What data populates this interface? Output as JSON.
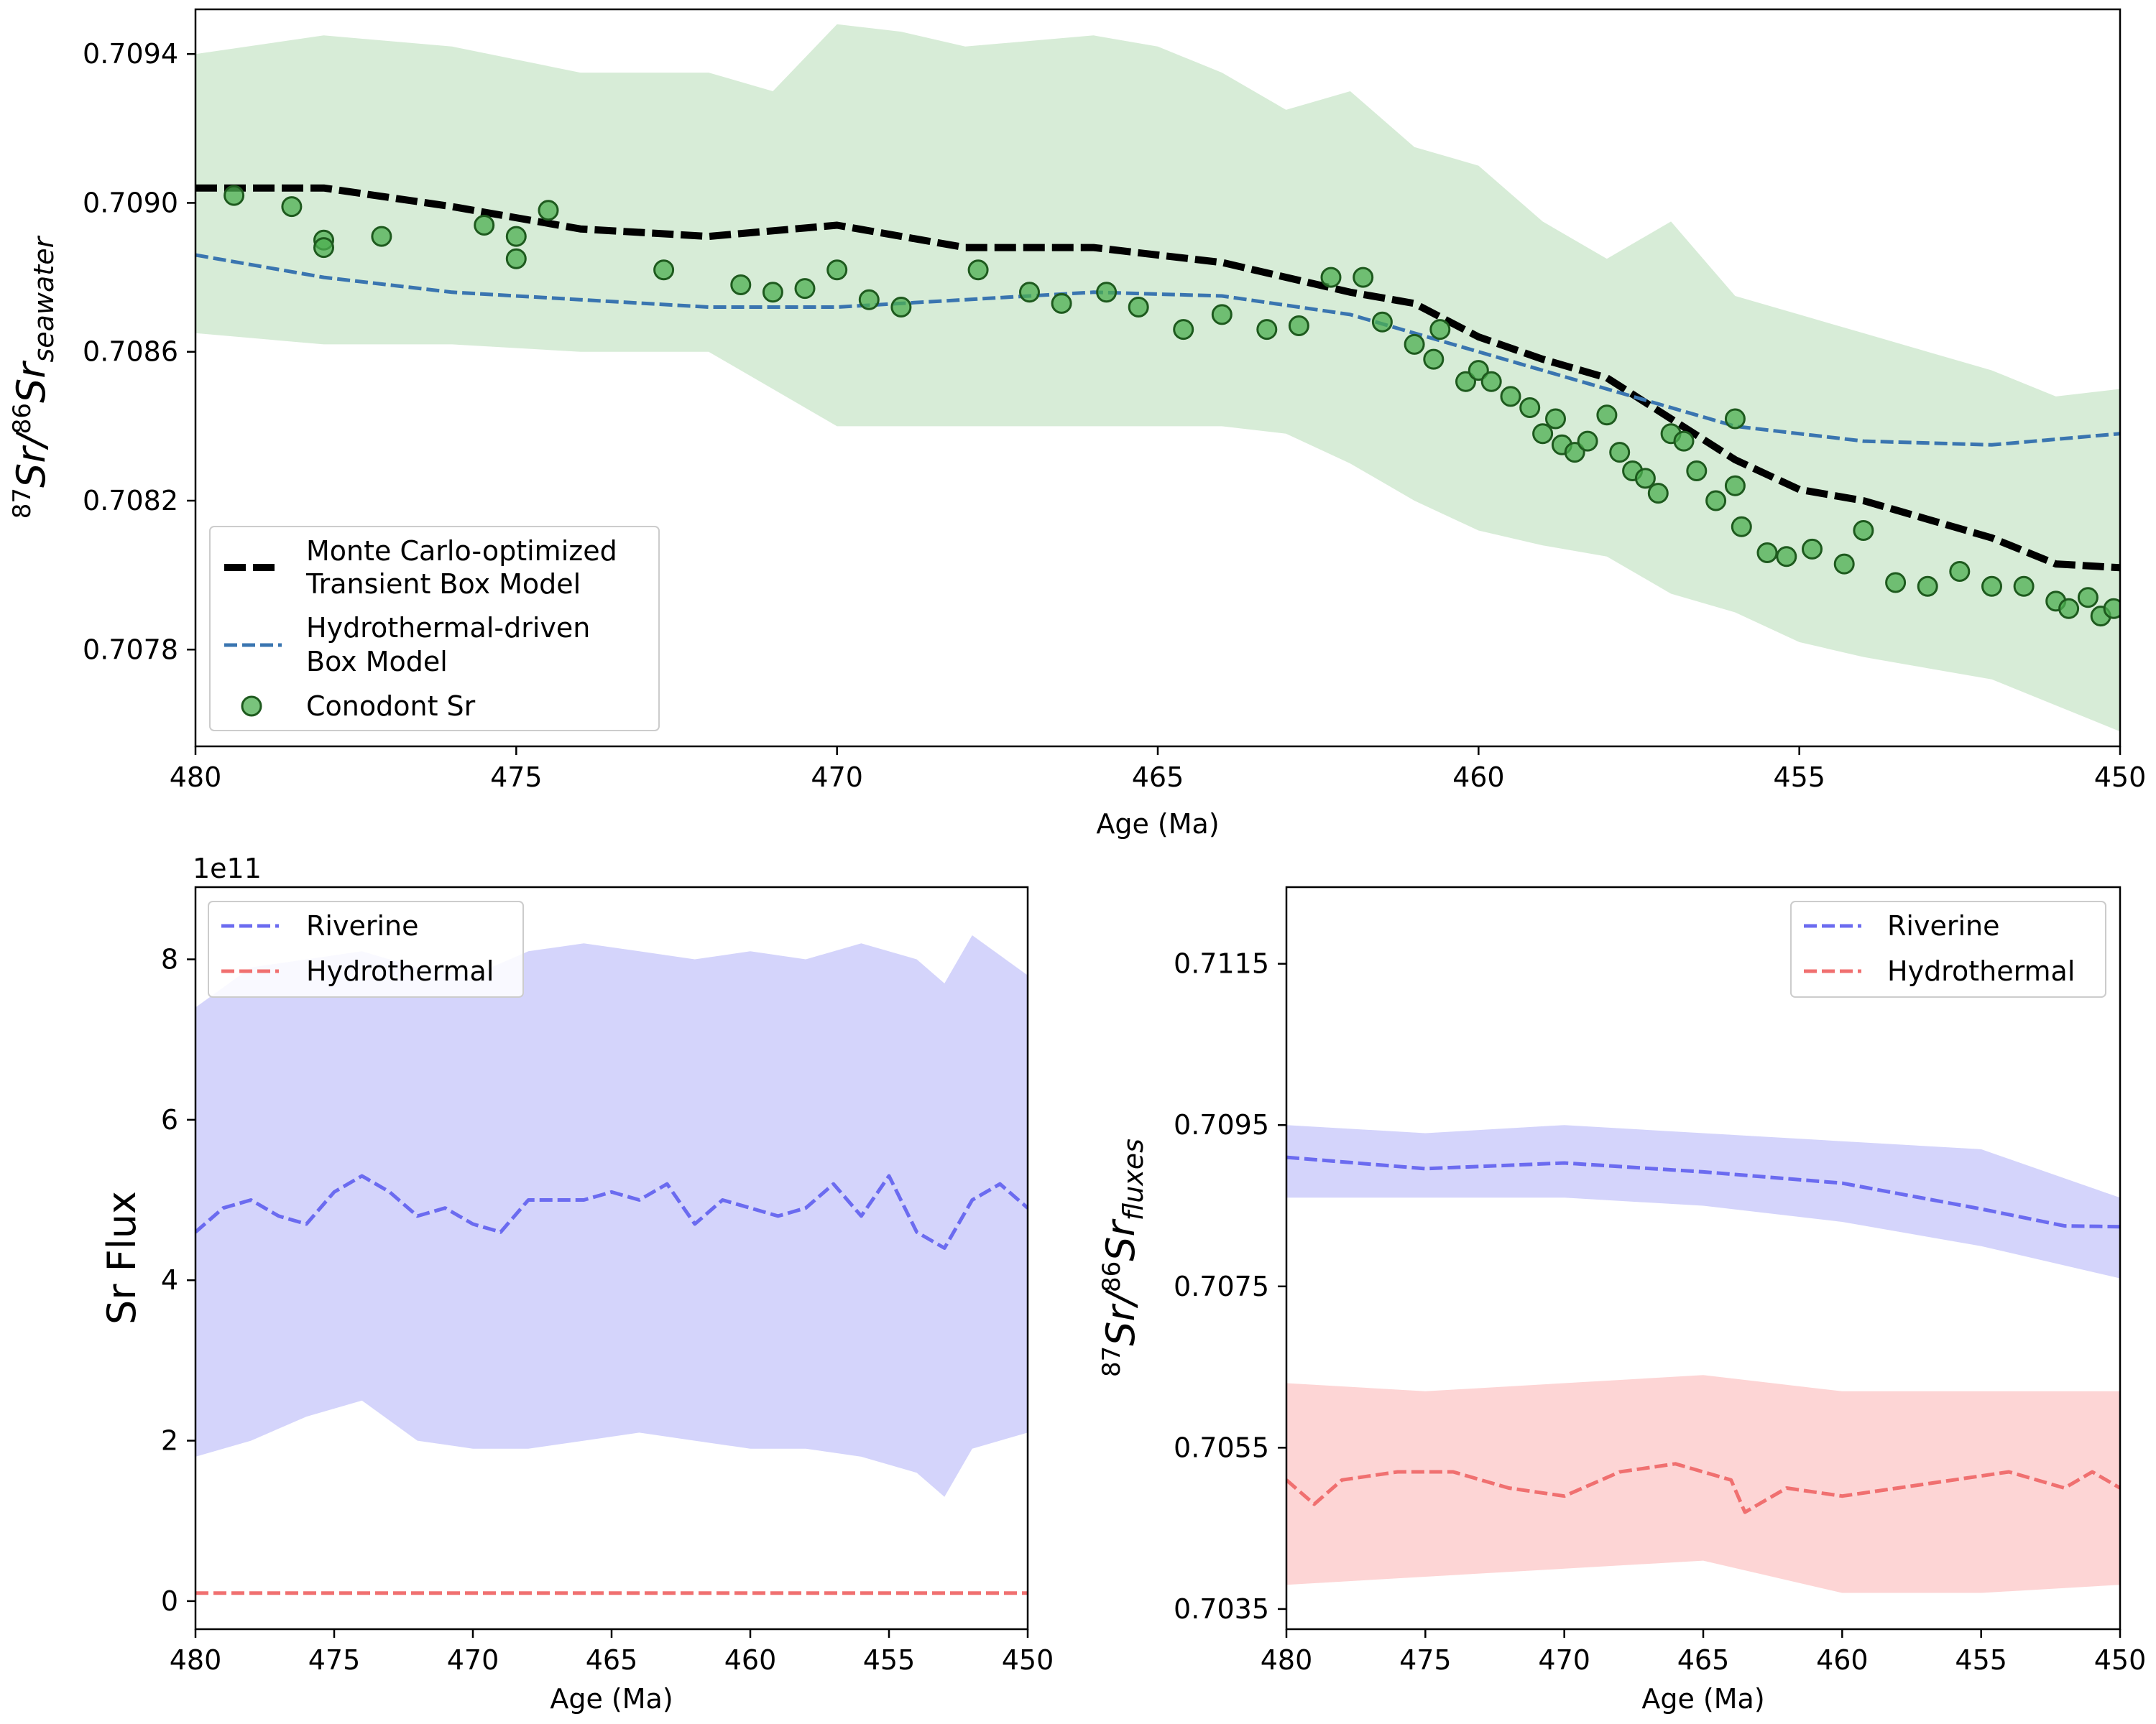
{
  "chart_data": [
    {
      "type": "line",
      "title": "",
      "xlabel": "Age (Ma)",
      "ylabel_sup": "87",
      "ylabel_mid": "Sr/",
      "ylabel_sup2": "86",
      "ylabel_main": "Sr",
      "ylabel_sub": "seawater",
      "xlim": [
        480,
        450
      ],
      "ylim": [
        0.70754,
        0.70952
      ],
      "x_ticks": [
        480,
        475,
        470,
        465,
        460,
        455,
        450
      ],
      "y_ticks": [
        0.7078,
        0.7082,
        0.7086,
        0.709,
        0.7094
      ],
      "legend_position": "lower-left",
      "band": {
        "color": "#d7ecd7",
        "x": [
          480,
          478,
          476,
          474,
          472,
          471,
          470,
          469,
          468,
          466,
          465,
          464,
          463,
          462,
          461,
          460,
          459,
          458,
          457,
          456,
          455,
          454,
          453,
          452,
          451,
          450
        ],
        "upper": [
          0.7094,
          0.70945,
          0.70942,
          0.70935,
          0.70935,
          0.7093,
          0.70948,
          0.70946,
          0.70942,
          0.70945,
          0.70942,
          0.70935,
          0.70925,
          0.7093,
          0.70915,
          0.7091,
          0.70895,
          0.70885,
          0.70895,
          0.70875,
          0.7087,
          0.70865,
          0.7086,
          0.70855,
          0.70848,
          0.7085
        ],
        "lower": [
          0.70865,
          0.70862,
          0.70862,
          0.7086,
          0.7086,
          0.7085,
          0.7084,
          0.7084,
          0.7084,
          0.7084,
          0.7084,
          0.7084,
          0.70838,
          0.7083,
          0.7082,
          0.70812,
          0.70808,
          0.70805,
          0.70795,
          0.7079,
          0.70782,
          0.70778,
          0.70775,
          0.70772,
          0.70765,
          0.70758
        ]
      },
      "series": [
        {
          "name": "Monte Carlo-optimized Transient Box Model",
          "color": "#000000",
          "style": "dashed-thick",
          "x": [
            480,
            478,
            476,
            474,
            472,
            470,
            468,
            466,
            464,
            462,
            461,
            460,
            459,
            458,
            457,
            456,
            455,
            454,
            453,
            452,
            451,
            450
          ],
          "y": [
            0.70904,
            0.70904,
            0.70899,
            0.70893,
            0.70891,
            0.70894,
            0.70888,
            0.70888,
            0.70884,
            0.70876,
            0.70873,
            0.70864,
            0.70858,
            0.70853,
            0.70842,
            0.70831,
            0.70823,
            0.7082,
            0.70815,
            0.7081,
            0.70803,
            0.70802
          ]
        },
        {
          "name": "Hydrothermal-driven Box Model",
          "color": "#3a75b0",
          "style": "dashed",
          "x": [
            480,
            478,
            476,
            474,
            472,
            470,
            468,
            466,
            464,
            462,
            460,
            458,
            456,
            454,
            452,
            450
          ],
          "y": [
            0.70886,
            0.7088,
            0.70876,
            0.70874,
            0.70872,
            0.70872,
            0.70874,
            0.70876,
            0.70875,
            0.7087,
            0.7086,
            0.7085,
            0.7084,
            0.70836,
            0.70835,
            0.70838
          ]
        },
        {
          "name": "Conodont Sr",
          "color": "#4caf50",
          "style": "scatter",
          "x": [
            479.4,
            478.5,
            478.0,
            478.0,
            477.1,
            475.5,
            475.0,
            475.0,
            474.5,
            472.7,
            471.5,
            471.0,
            470.5,
            470.0,
            469.5,
            469.0,
            467.8,
            467.0,
            466.5,
            465.8,
            465.3,
            464.6,
            464.0,
            463.3,
            462.8,
            462.3,
            461.8,
            461.5,
            461.0,
            460.7,
            460.6,
            460.2,
            460.0,
            459.8,
            459.5,
            459.2,
            459.0,
            458.8,
            458.7,
            458.5,
            458.3,
            458.0,
            457.8,
            457.6,
            457.4,
            457.2,
            457.0,
            456.8,
            456.6,
            456.3,
            456.0,
            456.0,
            455.9,
            455.5,
            455.2,
            454.8,
            454.3,
            454.0,
            453.5,
            453.0,
            452.5,
            452.0,
            451.5,
            451.0,
            450.8,
            450.5,
            450.3,
            450.1
          ],
          "y": [
            0.70902,
            0.70899,
            0.7089,
            0.70888,
            0.70891,
            0.70894,
            0.70891,
            0.70885,
            0.70898,
            0.70882,
            0.70878,
            0.70876,
            0.70877,
            0.70882,
            0.70874,
            0.70872,
            0.70882,
            0.70876,
            0.70873,
            0.70876,
            0.70872,
            0.70866,
            0.7087,
            0.70866,
            0.70867,
            0.7088,
            0.7088,
            0.70868,
            0.70862,
            0.70858,
            0.70866,
            0.70852,
            0.70855,
            0.70852,
            0.70848,
            0.70845,
            0.70838,
            0.70842,
            0.70835,
            0.70833,
            0.70836,
            0.70843,
            0.70833,
            0.70828,
            0.70826,
            0.70822,
            0.70838,
            0.70836,
            0.70828,
            0.7082,
            0.70824,
            0.70842,
            0.70813,
            0.70806,
            0.70805,
            0.70807,
            0.70803,
            0.70812,
            0.70798,
            0.70797,
            0.70801,
            0.70797,
            0.70797,
            0.70793,
            0.70791,
            0.70794,
            0.70789,
            0.70791
          ]
        }
      ]
    },
    {
      "type": "line",
      "title": "",
      "xlabel": "Age (Ma)",
      "ylabel": "Sr Flux",
      "y_offset_label": "1e11",
      "xlim": [
        480,
        450
      ],
      "ylim": [
        -0.35,
        8.9
      ],
      "x_ticks": [
        480,
        475,
        470,
        465,
        460,
        455,
        450
      ],
      "y_ticks": [
        0,
        2,
        4,
        6,
        8
      ],
      "legend_position": "top-left",
      "band": {
        "color": "#d4d4fb",
        "x": [
          480,
          478,
          476,
          474,
          472,
          470,
          468,
          466,
          464,
          462,
          460,
          458,
          456,
          454,
          453,
          452,
          450
        ],
        "upper": [
          7.4,
          7.9,
          8.0,
          8.1,
          7.9,
          7.8,
          8.1,
          8.2,
          8.1,
          8.0,
          8.1,
          8.0,
          8.2,
          8.0,
          7.7,
          8.3,
          7.8
        ],
        "lower": [
          1.8,
          2.0,
          2.3,
          2.5,
          2.0,
          1.9,
          1.9,
          2.0,
          2.1,
          2.0,
          1.9,
          1.9,
          1.8,
          1.6,
          1.3,
          1.9,
          2.1
        ]
      },
      "series": [
        {
          "name": "Riverine",
          "color": "#6b6bf0",
          "x": [
            480,
            479,
            478,
            477,
            476,
            475,
            474,
            473,
            472,
            471,
            470,
            469,
            468,
            467,
            466,
            465,
            464,
            463,
            462,
            461,
            460,
            459,
            458,
            457,
            456,
            455,
            454,
            453,
            452,
            451,
            450
          ],
          "y": [
            4.6,
            4.9,
            5.0,
            4.8,
            4.7,
            5.1,
            5.3,
            5.1,
            4.8,
            4.9,
            4.7,
            4.6,
            5.0,
            5.0,
            5.0,
            5.1,
            5.0,
            5.2,
            4.7,
            5.0,
            4.9,
            4.8,
            4.9,
            5.2,
            4.8,
            5.3,
            4.6,
            4.4,
            5.0,
            5.2,
            4.9
          ]
        },
        {
          "name": "Hydrothermal",
          "color": "#f07070",
          "x": [
            480,
            450
          ],
          "y": [
            0.1,
            0.1
          ]
        }
      ]
    },
    {
      "type": "line",
      "title": "",
      "xlabel": "Age (Ma)",
      "ylabel_sup": "87",
      "ylabel_mid": "Sr/",
      "ylabel_sup2": "86",
      "ylabel_main": "Sr",
      "ylabel_sub": "fluxes",
      "xlim": [
        480,
        450
      ],
      "ylim": [
        0.70325,
        0.71245
      ],
      "x_ticks": [
        480,
        475,
        470,
        465,
        460,
        455,
        450
      ],
      "y_ticks": [
        0.7035,
        0.7055,
        0.7075,
        0.7095,
        0.7115
      ],
      "legend_position": "top-right",
      "bands": [
        {
          "color": "#d4d4fb",
          "x": [
            480,
            475,
            470,
            465,
            460,
            455,
            450
          ],
          "upper": [
            0.7095,
            0.7094,
            0.7095,
            0.7094,
            0.7093,
            0.7092,
            0.7086
          ],
          "lower": [
            0.7086,
            0.7086,
            0.7086,
            0.7085,
            0.7083,
            0.708,
            0.7076
          ]
        },
        {
          "color": "#fdd5d5",
          "x": [
            480,
            475,
            470,
            465,
            460,
            455,
            450
          ],
          "upper": [
            0.7063,
            0.7062,
            0.7063,
            0.7064,
            0.7062,
            0.7062,
            0.7062
          ],
          "lower": [
            0.7038,
            0.7039,
            0.704,
            0.7041,
            0.7037,
            0.7037,
            0.7038
          ]
        }
      ],
      "series": [
        {
          "name": "Riverine",
          "color": "#6b6bf0",
          "x": [
            480,
            475,
            470,
            465,
            460,
            455,
            452,
            450
          ],
          "y": [
            0.7091,
            0.70896,
            0.70903,
            0.70892,
            0.70878,
            0.70846,
            0.70825,
            0.70824
          ]
        },
        {
          "name": "Hydrothermal",
          "color": "#f07070",
          "x": [
            480,
            479,
            478,
            476,
            474,
            472,
            470,
            468,
            466,
            464,
            463.5,
            462,
            460,
            458,
            456,
            454,
            452,
            451,
            450
          ],
          "y": [
            0.7051,
            0.7048,
            0.7051,
            0.7052,
            0.7052,
            0.705,
            0.7049,
            0.7052,
            0.7053,
            0.7051,
            0.7047,
            0.705,
            0.7049,
            0.705,
            0.7051,
            0.7052,
            0.705,
            0.7052,
            0.705
          ]
        }
      ]
    }
  ]
}
